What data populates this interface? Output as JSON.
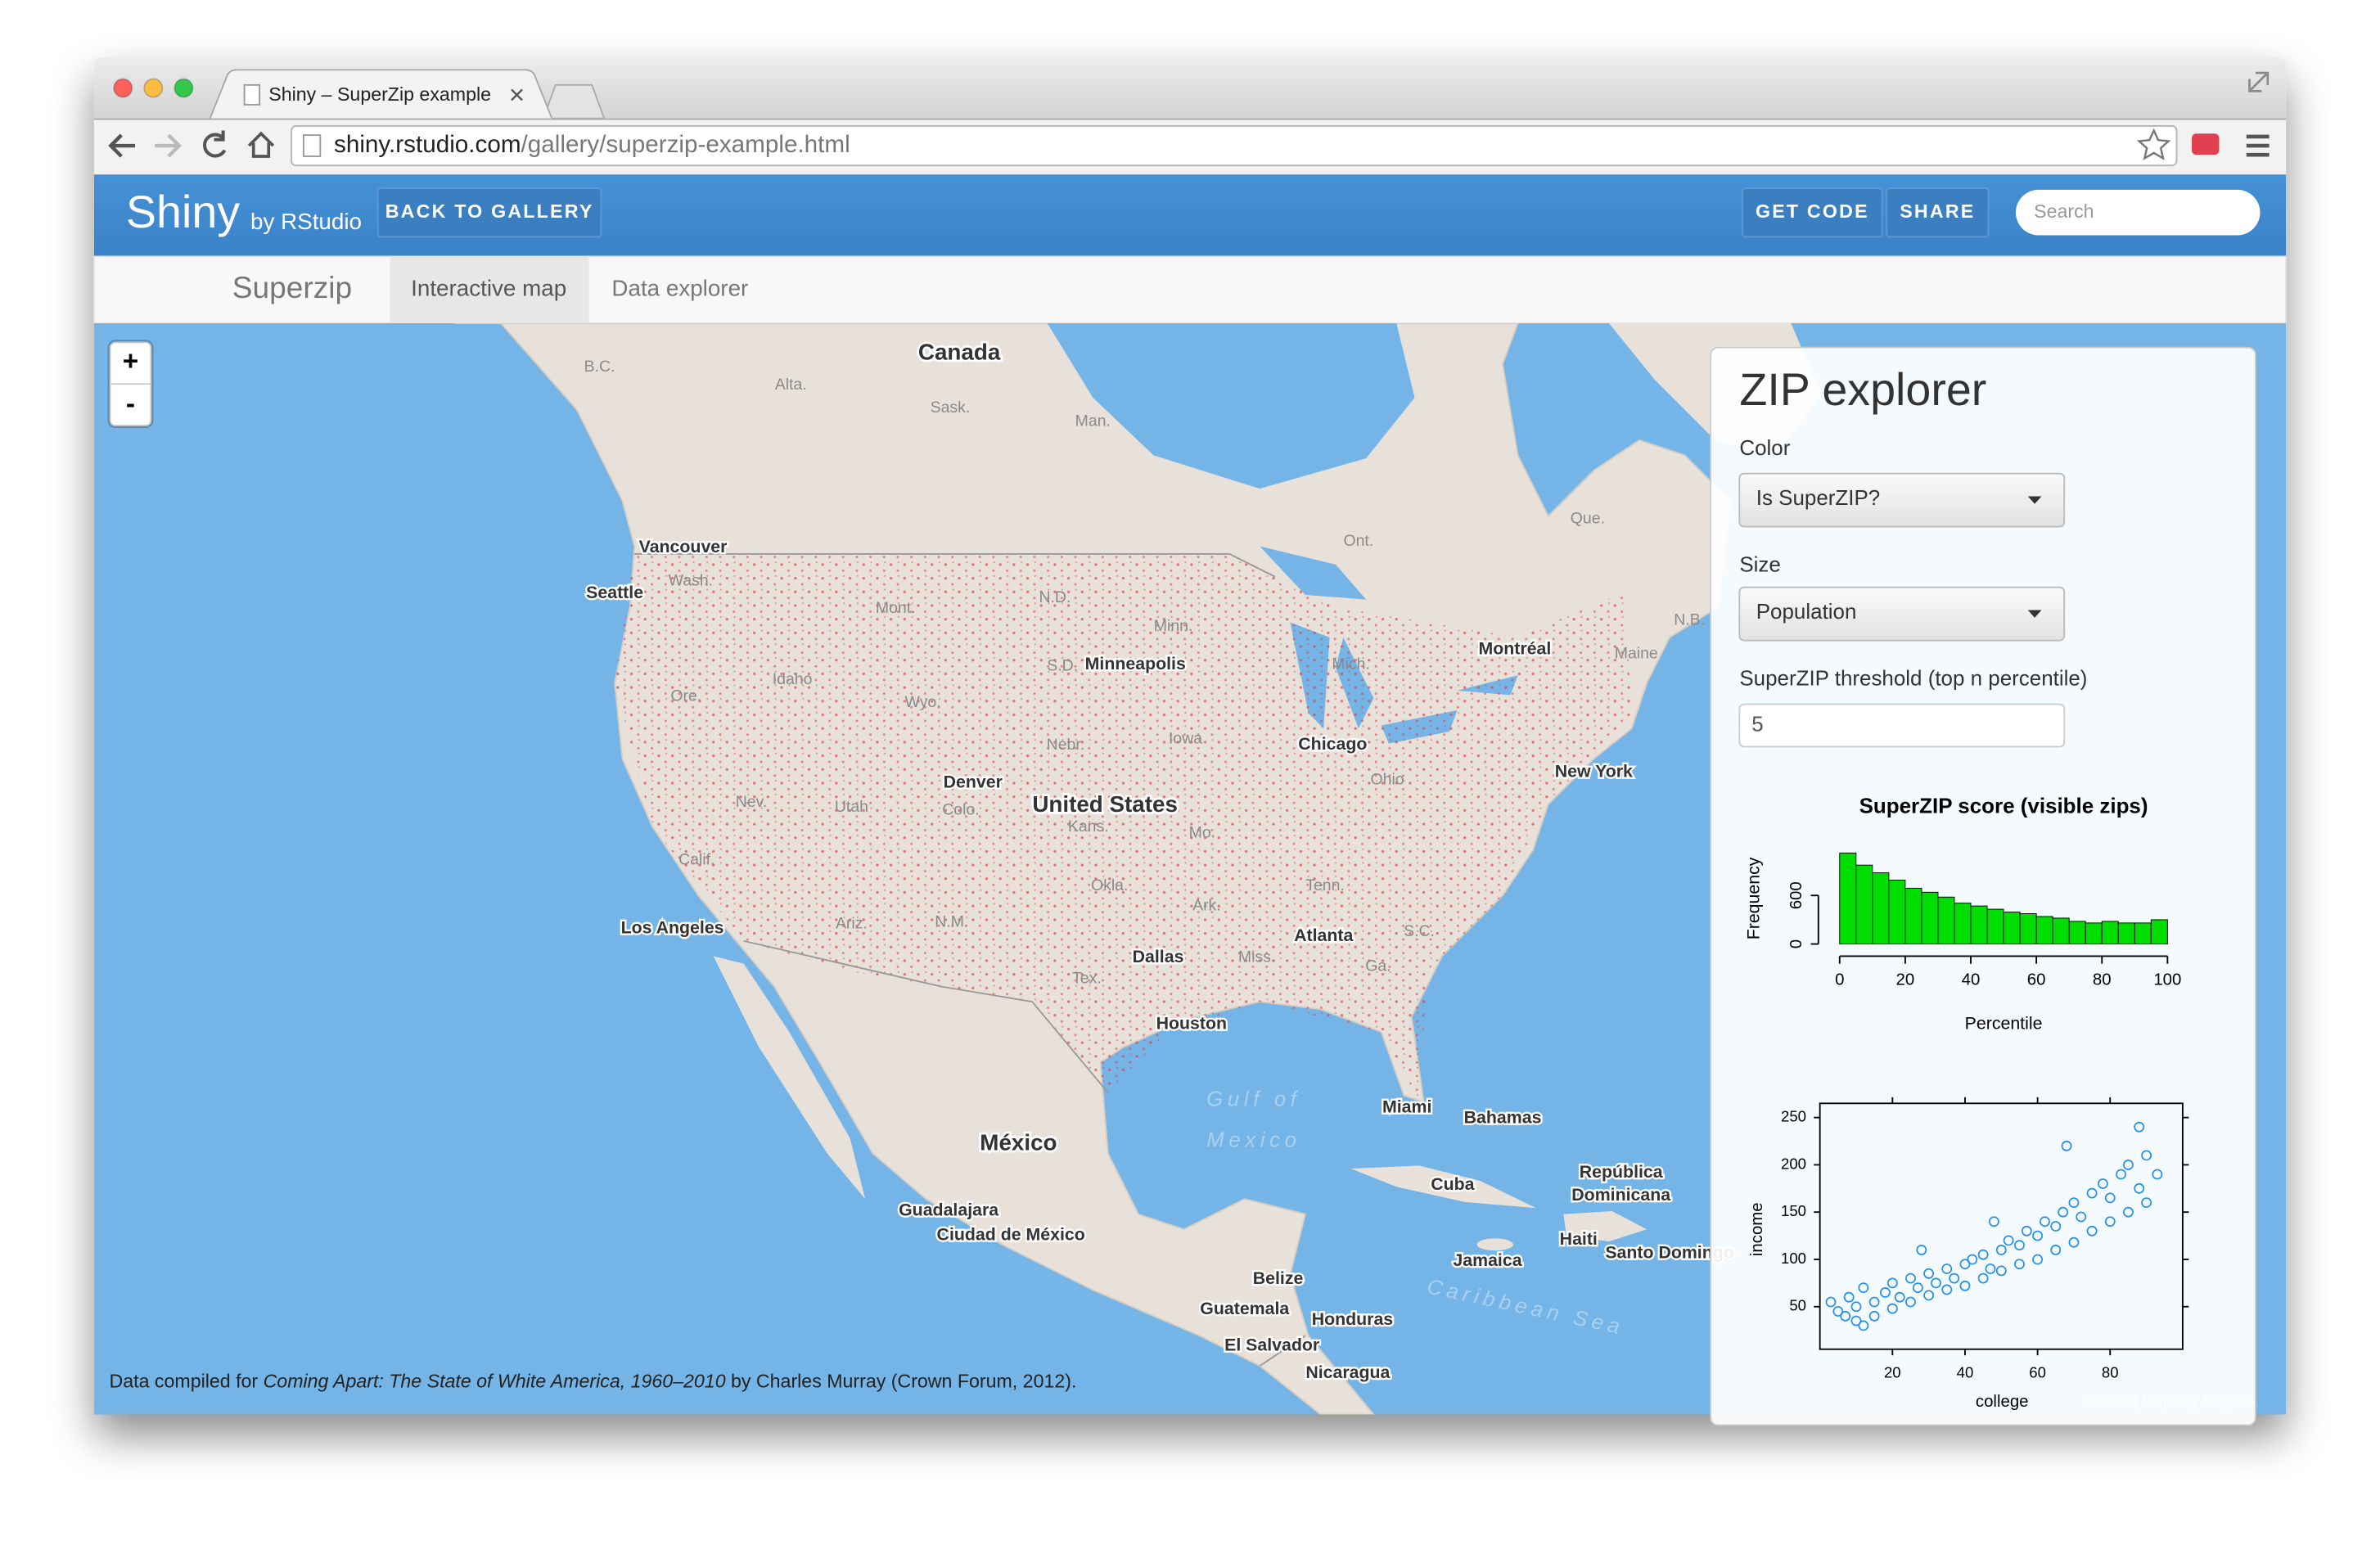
{
  "browser": {
    "tab_title": "Shiny – SuperZip example",
    "url_host": "shiny.rstudio.com",
    "url_path": "/gallery/superzip-example.html"
  },
  "navbar": {
    "brand": "Shiny",
    "brand_by": "by RStudio",
    "back_button": "BACK TO GALLERY",
    "get_code_button": "GET CODE",
    "share_button": "SHARE",
    "search_placeholder": "Search"
  },
  "app_nav": {
    "title": "Superzip",
    "tabs": [
      "Interactive map",
      "Data explorer"
    ]
  },
  "map": {
    "zoom_in": "+",
    "zoom_out": "-",
    "labels": [
      "Canada",
      "B.C.",
      "Alta.",
      "Sask.",
      "Man.",
      "Ont.",
      "Que.",
      "N.B.",
      "Maine",
      "Vancouver",
      "Seattle",
      "Wash.",
      "Mont.",
      "N.D.",
      "Minn.",
      "Minneapolis",
      "S.D.",
      "Idaho",
      "Wyo.",
      "Ore.",
      "Mich.",
      "Montréal",
      "Nebr.",
      "Iowa",
      "Chicago",
      "Ohio",
      "Denver",
      "Colo.",
      "United States",
      "Nev.",
      "Utah",
      "Kans.",
      "Mo.",
      "New York",
      "Calif.",
      "Okla.",
      "Tenn.",
      "Ark.",
      "Ariz.",
      "N.M.",
      "Los Angeles",
      "Atlanta",
      "S.C.",
      "Dallas",
      "Miss.",
      "Ga.",
      "Tex.",
      "Houston",
      "Miami",
      "Bahamas",
      "Gulf of",
      "Mexico",
      "México",
      "Cuba",
      "República",
      "Dominicana",
      "Guadalajara",
      "Ciudad de México",
      "Haiti",
      "Santo Domingo",
      "Jamaica",
      "Belize",
      "Caribbean Sea",
      "Guatemala",
      "Honduras",
      "El Salvador",
      "Nicaragua"
    ],
    "footer": {
      "prefix": "Data compiled for ",
      "book": "Coming Apart: The State of White America, 1960–2010",
      "suffix": " by Charles Murray (Crown Forum, 2012)."
    },
    "attribution": "Leaflet | Maps by Mapbox"
  },
  "panel": {
    "title": "ZIP explorer",
    "color_label": "Color",
    "color_value": "Is SuperZIP?",
    "size_label": "Size",
    "size_value": "Population",
    "threshold_label": "SuperZIP threshold (top n percentile)",
    "threshold_value": "5",
    "histogram": {
      "type": "histogram",
      "title": "SuperZIP score (visible zips)",
      "x_label": "Percentile",
      "y_label": "Frequency",
      "bins": [
        0,
        5,
        10,
        15,
        20,
        25,
        30,
        35,
        40,
        45,
        50,
        55,
        60,
        65,
        70,
        75,
        80,
        85,
        90,
        95,
        100
      ],
      "counts": [
        1125,
        975,
        880,
        790,
        690,
        640,
        580,
        505,
        470,
        430,
        395,
        375,
        340,
        320,
        280,
        260,
        280,
        260,
        260,
        300
      ],
      "color": "#00dd00",
      "xlim": [
        0,
        100
      ],
      "xticks": [
        0,
        20,
        40,
        60,
        80,
        100
      ],
      "ylim": [
        0,
        1150
      ],
      "yticks": [
        0,
        600
      ]
    },
    "scatter": {
      "type": "scatter",
      "x_label": "college",
      "y_label": "income",
      "x": [
        5,
        8,
        10,
        12,
        15,
        18,
        20,
        22,
        25,
        27,
        30,
        32,
        35,
        37,
        40,
        42,
        45,
        47,
        50,
        52,
        55,
        57,
        60,
        62,
        65,
        67,
        70,
        72,
        75,
        78,
        80,
        83,
        85,
        88,
        90,
        93,
        10,
        15,
        20,
        25,
        30,
        35,
        40,
        45,
        50,
        55,
        60,
        65,
        70,
        75,
        80,
        85,
        90,
        3,
        7,
        12,
        28,
        48,
        68,
        88
      ],
      "y": [
        45,
        60,
        50,
        70,
        55,
        65,
        75,
        60,
        80,
        70,
        85,
        75,
        90,
        80,
        95,
        100,
        105,
        90,
        110,
        120,
        115,
        130,
        125,
        140,
        135,
        150,
        160,
        145,
        170,
        180,
        165,
        190,
        200,
        175,
        210,
        190,
        35,
        40,
        48,
        55,
        62,
        68,
        72,
        80,
        88,
        95,
        100,
        110,
        118,
        130,
        140,
        150,
        160,
        55,
        40,
        30,
        110,
        140,
        220,
        240
      ],
      "color": "#1e8ff0",
      "xlim": [
        0,
        100
      ],
      "xticks": [
        20,
        40,
        60,
        80
      ],
      "ylim": [
        5,
        265
      ],
      "yticks": [
        50,
        100,
        150,
        200,
        250
      ]
    }
  }
}
